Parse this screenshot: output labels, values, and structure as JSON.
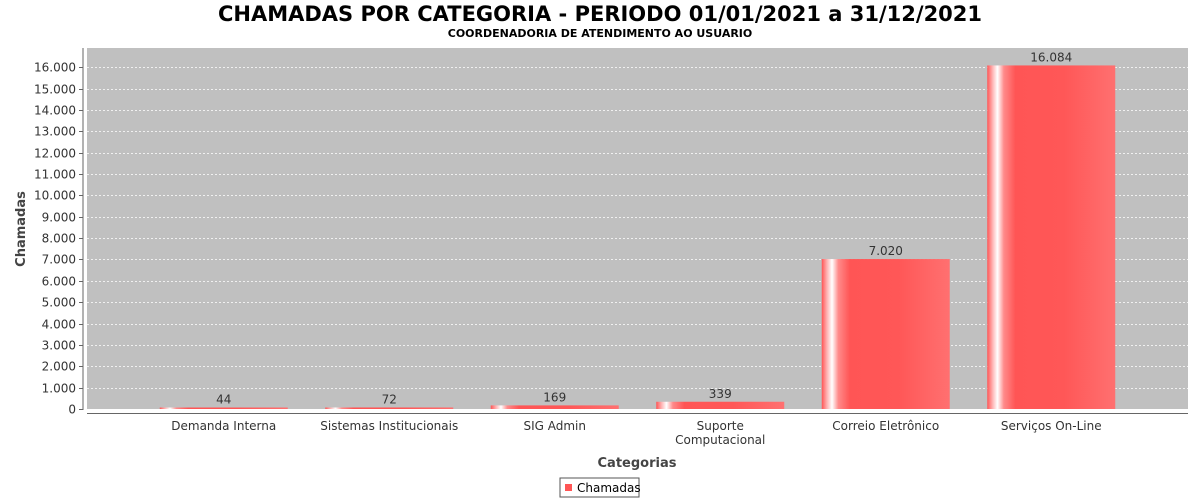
{
  "chart_data": {
    "type": "bar",
    "title": "CHAMADAS POR CATEGORIA - PERIODO 01/01/2021 a 31/12/2021",
    "subtitle": "COORDENADORIA DE ATENDIMENTO AO USUARIO",
    "xlabel": "Categorias",
    "ylabel": "Chamadas",
    "categories": [
      [
        "Demanda Interna"
      ],
      [
        "Sistemas Institucionais"
      ],
      [
        "SIG Admin"
      ],
      [
        "Suporte",
        "Computacional"
      ],
      [
        "Correio Eletrônico"
      ],
      [
        "Serviços On-Line"
      ]
    ],
    "series": [
      {
        "name": "Chamadas",
        "values": [
          44,
          72,
          169,
          339,
          7020,
          16084
        ]
      }
    ],
    "value_labels": [
      "44",
      "72",
      "169",
      "339",
      "7.020",
      "16.084"
    ],
    "yticks": [
      0,
      1000,
      2000,
      3000,
      4000,
      5000,
      6000,
      7000,
      8000,
      9000,
      10000,
      11000,
      12000,
      13000,
      14000,
      15000,
      16000
    ],
    "ytick_labels": [
      "0",
      "1.000",
      "2.000",
      "3.000",
      "4.000",
      "5.000",
      "6.000",
      "7.000",
      "8.000",
      "9.000",
      "10.000",
      "11.000",
      "12.000",
      "13.000",
      "14.000",
      "15.000",
      "16.000"
    ],
    "ylim": [
      0,
      16900
    ],
    "grid": true,
    "legend_position": "bottom",
    "colors": {
      "bar": "#ff5555",
      "bar_highlight": "#ffffff",
      "plot_background": "#c0c0c0",
      "grid": "#ffffff"
    }
  }
}
